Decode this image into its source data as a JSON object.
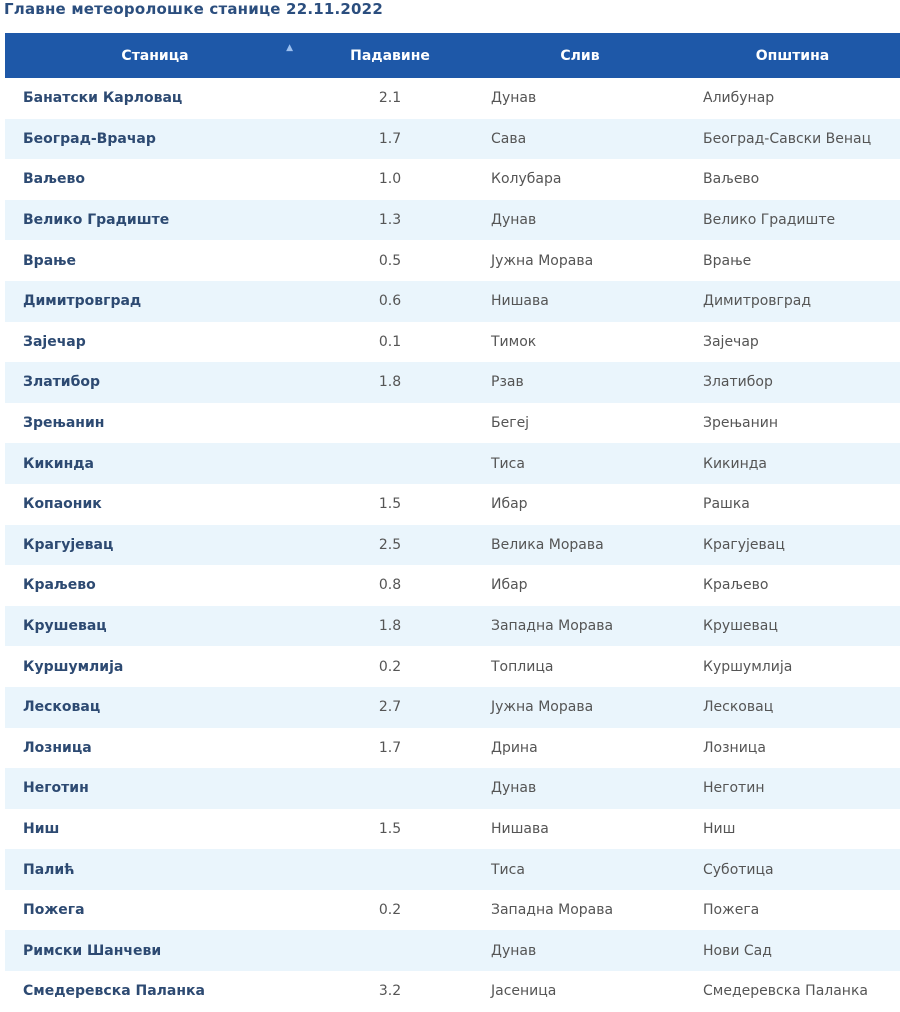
{
  "title": "Главне метеоролошке станице 22.11.2022",
  "columns": {
    "station": "Станица",
    "precip": "Падавине",
    "basin": "Слив",
    "municipality": "Општина"
  },
  "sort_icon": "triangle-up",
  "colors": {
    "header_bg": "#1e58a8",
    "row_alt": "#eaf5fc",
    "station_text": "#2d4a72"
  },
  "rows": [
    {
      "station": "Банатски Карловац",
      "precip": "2.1",
      "basin": "Дунав",
      "municipality": "Алибунар"
    },
    {
      "station": "Београд-Врачар",
      "precip": "1.7",
      "basin": "Сава",
      "municipality": "Београд-Савски Венац"
    },
    {
      "station": "Ваљево",
      "precip": "1.0",
      "basin": "Колубара",
      "municipality": "Ваљево"
    },
    {
      "station": "Велико Градиште",
      "precip": "1.3",
      "basin": "Дунав",
      "municipality": "Велико Градиште"
    },
    {
      "station": "Врање",
      "precip": "0.5",
      "basin": "Јужна Морава",
      "municipality": "Врање"
    },
    {
      "station": "Димитровград",
      "precip": "0.6",
      "basin": "Нишава",
      "municipality": "Димитровград"
    },
    {
      "station": "Зајечар",
      "precip": "0.1",
      "basin": "Тимок",
      "municipality": "Зајечар"
    },
    {
      "station": "Златибор",
      "precip": "1.8",
      "basin": "Рзав",
      "municipality": "Златибор"
    },
    {
      "station": "Зрењанин",
      "precip": "",
      "basin": "Бегеј",
      "municipality": "Зрењанин"
    },
    {
      "station": "Кикинда",
      "precip": "",
      "basin": "Тиса",
      "municipality": "Кикинда"
    },
    {
      "station": "Копаоник",
      "precip": "1.5",
      "basin": "Ибар",
      "municipality": "Рашка"
    },
    {
      "station": "Крагујевац",
      "precip": "2.5",
      "basin": "Велика Морава",
      "municipality": "Крагујевац"
    },
    {
      "station": "Краљево",
      "precip": "0.8",
      "basin": "Ибар",
      "municipality": "Краљево"
    },
    {
      "station": "Крушевац",
      "precip": "1.8",
      "basin": "Западна Морава",
      "municipality": "Крушевац"
    },
    {
      "station": "Куршумлија",
      "precip": "0.2",
      "basin": "Топлица",
      "municipality": "Куршумлија"
    },
    {
      "station": "Лесковац",
      "precip": "2.7",
      "basin": "Јужна Морава",
      "municipality": "Лесковац"
    },
    {
      "station": "Лозница",
      "precip": "1.7",
      "basin": "Дрина",
      "municipality": "Лозница"
    },
    {
      "station": "Неготин",
      "precip": "",
      "basin": "Дунав",
      "municipality": "Неготин"
    },
    {
      "station": "Ниш",
      "precip": "1.5",
      "basin": "Нишава",
      "municipality": "Ниш"
    },
    {
      "station": "Палић",
      "precip": "",
      "basin": "Тиса",
      "municipality": "Суботица"
    },
    {
      "station": "Пожега",
      "precip": "0.2",
      "basin": "Западна Морава",
      "municipality": "Пожега"
    },
    {
      "station": "Римски Шанчеви",
      "precip": "",
      "basin": "Дунав",
      "municipality": "Нови Сад"
    },
    {
      "station": "Смедеревска Паланка",
      "precip": "3.2",
      "basin": "Јасеница",
      "municipality": "Смедеревска Паланка"
    }
  ]
}
